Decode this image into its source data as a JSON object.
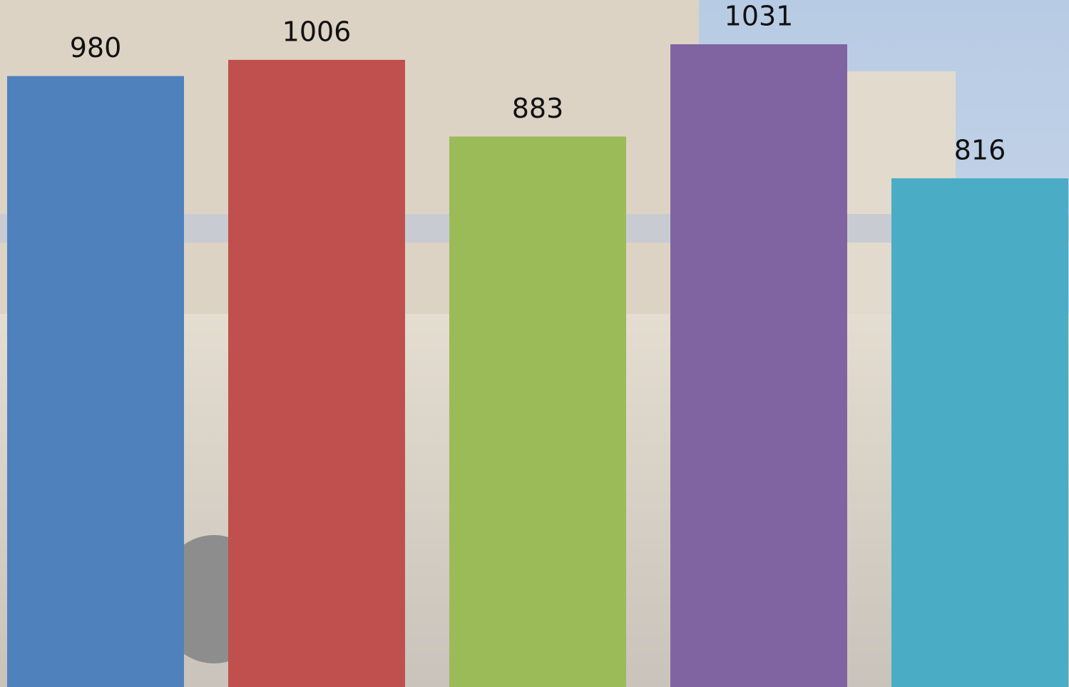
{
  "chart_data": {
    "type": "bar",
    "values": [
      980,
      1006,
      883,
      1031,
      816
    ],
    "colors": [
      "#4f81bd",
      "#c0504d",
      "#9bbb59",
      "#8064a2",
      "#4bacc6"
    ],
    "ylim": [
      0,
      1102
    ]
  }
}
